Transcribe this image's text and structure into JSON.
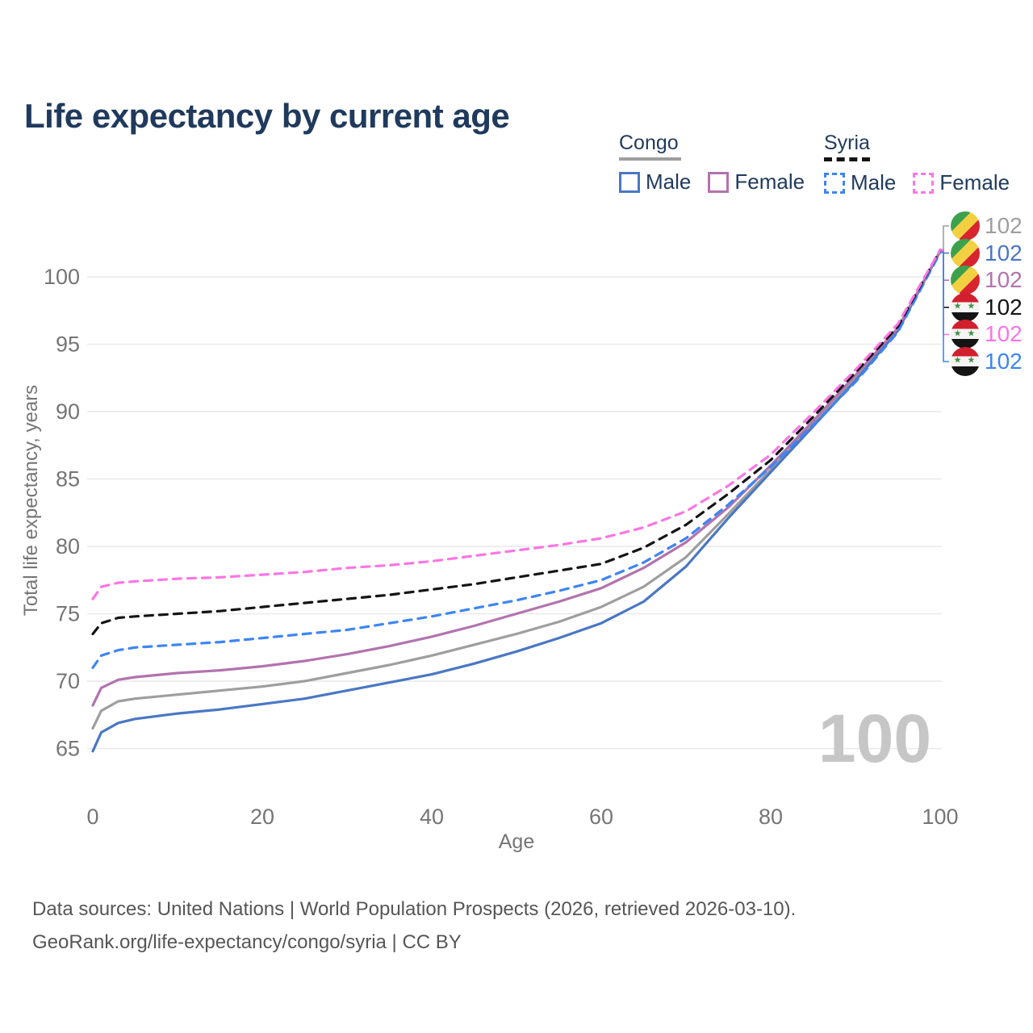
{
  "title": "Life expectancy by current age",
  "colors": {
    "title_text": "#1f3a5c",
    "axis_text": "#757575",
    "grid": "#e9e9e9",
    "watermark": "#c6c6c6",
    "footer_text": "#565656",
    "congo_male": "#4a77c4",
    "congo_female": "#b273ae",
    "congo_total": "#9e9e9e",
    "syria_male": "#3d85f2",
    "syria_female": "#fb76e3",
    "syria_total": "#141414"
  },
  "icons": {
    "syria_stars": "★ ★"
  },
  "legend": {
    "groups": [
      {
        "label": "Congo",
        "underline": "solid",
        "underline_color": "#9e9e9e",
        "items": [
          {
            "label": "Male",
            "color": "#4a77c4",
            "dashed": false
          },
          {
            "label": "Female",
            "color": "#b273ae",
            "dashed": false
          }
        ]
      },
      {
        "label": "Syria",
        "underline": "dashed",
        "underline_color": "#141414",
        "items": [
          {
            "label": "Male",
            "color": "#3d85f2",
            "dashed": true
          },
          {
            "label": "Female",
            "color": "#fb76e3",
            "dashed": true
          }
        ]
      }
    ]
  },
  "chart_data": {
    "type": "line",
    "title": "Life expectancy by current age",
    "xlabel": "Age",
    "ylabel": "Total life expectancy, years",
    "xlim": [
      0,
      100
    ],
    "ylim": [
      63.5,
      103
    ],
    "x_ticks": [
      0,
      20,
      40,
      60,
      80,
      100
    ],
    "y_ticks": [
      65,
      70,
      75,
      80,
      85,
      90,
      95,
      100
    ],
    "grid": "horizontal",
    "legend_position": "top-right",
    "watermark": "100",
    "x": [
      0,
      1,
      3,
      5,
      10,
      15,
      20,
      25,
      30,
      35,
      40,
      45,
      50,
      55,
      60,
      65,
      70,
      75,
      80,
      85,
      90,
      95,
      100
    ],
    "series": [
      {
        "name": "Congo",
        "country": "Congo",
        "sex": "Both",
        "color": "#9e9e9e",
        "dashed": false,
        "values": [
          66.5,
          67.8,
          68.5,
          68.7,
          69.0,
          69.3,
          69.6,
          70.0,
          70.6,
          71.2,
          71.9,
          72.7,
          73.5,
          74.4,
          75.5,
          77.0,
          79.2,
          82.4,
          85.7,
          89.1,
          92.5,
          96.1,
          101.9
        ]
      },
      {
        "name": "Congo Male",
        "country": "Congo",
        "sex": "Male",
        "color": "#4a77c4",
        "dashed": false,
        "values": [
          64.8,
          66.2,
          66.9,
          67.2,
          67.6,
          67.9,
          68.3,
          68.7,
          69.3,
          69.9,
          70.5,
          71.3,
          72.2,
          73.2,
          74.3,
          75.9,
          78.5,
          82.1,
          85.5,
          88.9,
          92.3,
          96.0,
          101.9
        ]
      },
      {
        "name": "Congo Female",
        "country": "Congo",
        "sex": "Female",
        "color": "#b273ae",
        "dashed": false,
        "values": [
          68.2,
          69.5,
          70.1,
          70.3,
          70.6,
          70.8,
          71.1,
          71.5,
          72.0,
          72.6,
          73.3,
          74.1,
          75.0,
          75.9,
          76.9,
          78.4,
          80.3,
          82.9,
          86.0,
          89.3,
          92.7,
          96.2,
          101.9
        ]
      },
      {
        "name": "Syria Male",
        "country": "Syria",
        "sex": "Male",
        "color": "#3d85f2",
        "dashed": true,
        "values": [
          71.0,
          71.9,
          72.3,
          72.5,
          72.7,
          72.9,
          73.2,
          73.5,
          73.8,
          74.3,
          74.8,
          75.4,
          76.0,
          76.7,
          77.5,
          78.8,
          80.6,
          83.1,
          85.9,
          89.0,
          92.2,
          95.9,
          101.8
        ]
      },
      {
        "name": "Syria",
        "country": "Syria",
        "sex": "Both",
        "color": "#141414",
        "dashed": true,
        "values": [
          73.5,
          74.3,
          74.7,
          74.8,
          75.0,
          75.2,
          75.5,
          75.8,
          76.1,
          76.4,
          76.8,
          77.2,
          77.7,
          78.2,
          78.7,
          79.9,
          81.6,
          83.9,
          86.4,
          89.6,
          92.9,
          96.3,
          102.0
        ]
      },
      {
        "name": "Syria Female",
        "country": "Syria",
        "sex": "Female",
        "color": "#fb76e3",
        "dashed": true,
        "values": [
          76.1,
          77.0,
          77.3,
          77.4,
          77.6,
          77.7,
          77.9,
          78.1,
          78.4,
          78.6,
          78.9,
          79.3,
          79.7,
          80.1,
          80.6,
          81.4,
          82.6,
          84.5,
          86.8,
          89.9,
          93.1,
          96.5,
          102.0
        ]
      }
    ],
    "end_panel": [
      {
        "series": "Congo",
        "flag": "congo",
        "value": "102",
        "color": "#9e9e9e"
      },
      {
        "series": "Congo Male",
        "flag": "congo",
        "value": "102",
        "color": "#4a77c4"
      },
      {
        "series": "Congo Female",
        "flag": "congo",
        "value": "102",
        "color": "#b273ae"
      },
      {
        "series": "Syria",
        "flag": "syria",
        "value": "102",
        "color": "#141414"
      },
      {
        "series": "Syria Female",
        "flag": "syria",
        "value": "102",
        "color": "#fb76e3"
      },
      {
        "series": "Syria Male",
        "flag": "syria",
        "value": "102",
        "color": "#3d85f2"
      }
    ]
  },
  "footer": {
    "line1": "Data sources: United Nations | World Population Prospects (2026, retrieved 2026-03-10).",
    "line2": "GeoRank.org/life-expectancy/congo/syria | CC BY"
  }
}
